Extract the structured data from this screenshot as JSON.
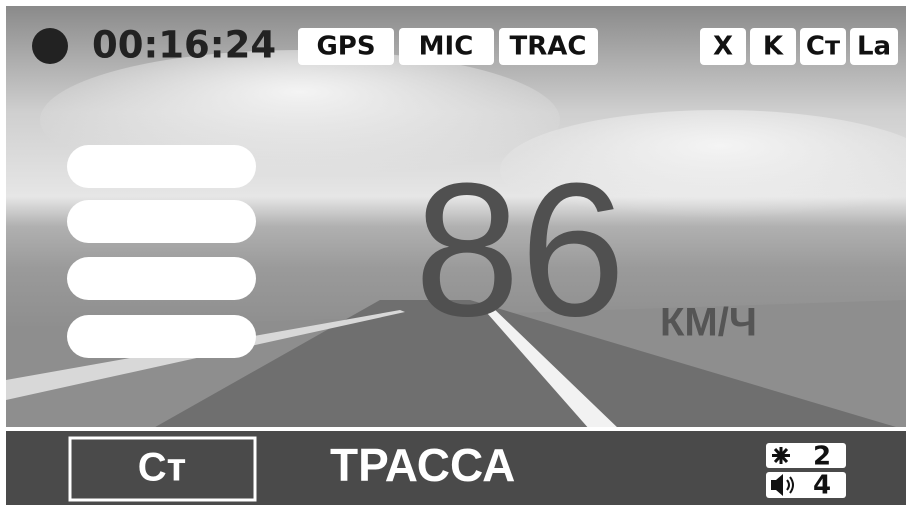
{
  "status_bar": {
    "recording_time": "00:16:24",
    "modes": [
      "GPS",
      "MIC",
      "TRAC"
    ],
    "bands": [
      "X",
      "K",
      "Ст",
      "La"
    ]
  },
  "speed": {
    "value": "86",
    "unit": "КМ/Ч"
  },
  "bottom_bar": {
    "profile": "Ст",
    "mode": "ТРАССА",
    "brightness": "2",
    "volume": "4"
  }
}
